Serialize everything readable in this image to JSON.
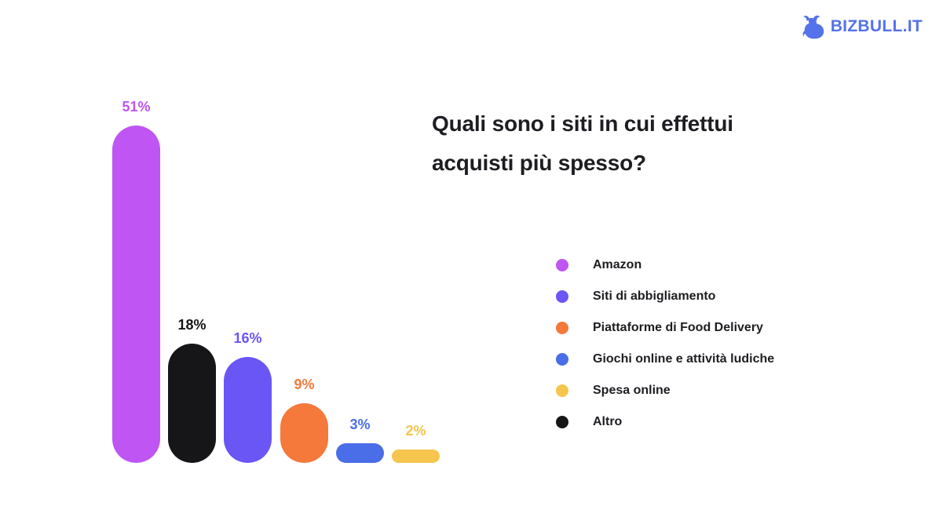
{
  "logo": {
    "text": "BIZBULL.IT",
    "color": "#5472ea",
    "icon": "bull-icon"
  },
  "title": {
    "lines": [
      "Quali sono i siti in cui effettui",
      "acquisti più spesso?"
    ]
  },
  "chart_data": {
    "type": "bar",
    "unit": "%",
    "title": "Quali sono i siti in cui effettui acquisti più spesso?",
    "categories": [
      "Amazon",
      "Altro",
      "Siti di abbigliamento",
      "Piattaforme di Food Delivery",
      "Giochi online e attività ludiche",
      "Spesa online"
    ],
    "values": [
      51,
      18,
      16,
      9,
      3,
      2
    ],
    "bars": [
      {
        "label": "Amazon",
        "value": 51,
        "color": "#bf55f2"
      },
      {
        "label": "Altro",
        "value": 18,
        "color": "#161618"
      },
      {
        "label": "Siti di abbigliamento",
        "value": 16,
        "color": "#6a55f5"
      },
      {
        "label": "Piattaforme di Food Delivery",
        "value": 9,
        "color": "#f4793a"
      },
      {
        "label": "Giochi online e attività ludiche",
        "value": 3,
        "color": "#4a6de8"
      },
      {
        "label": "Spesa online",
        "value": 2,
        "color": "#f5c54d"
      }
    ],
    "legend": [
      {
        "label": "Amazon",
        "color": "#bf55f2"
      },
      {
        "label": "Siti di abbigliamento",
        "color": "#6a55f5"
      },
      {
        "label": "Piattaforme di Food Delivery",
        "color": "#f4793a"
      },
      {
        "label": "Giochi online e attività ludiche",
        "color": "#4a6de8"
      },
      {
        "label": "Spesa online",
        "color": "#f5c54d"
      },
      {
        "label": "Altro",
        "color": "#161618"
      }
    ],
    "ylim": [
      0,
      51
    ],
    "grid": false,
    "axes_visible": false,
    "legend_position": "right",
    "value_labels_shown": true
  }
}
